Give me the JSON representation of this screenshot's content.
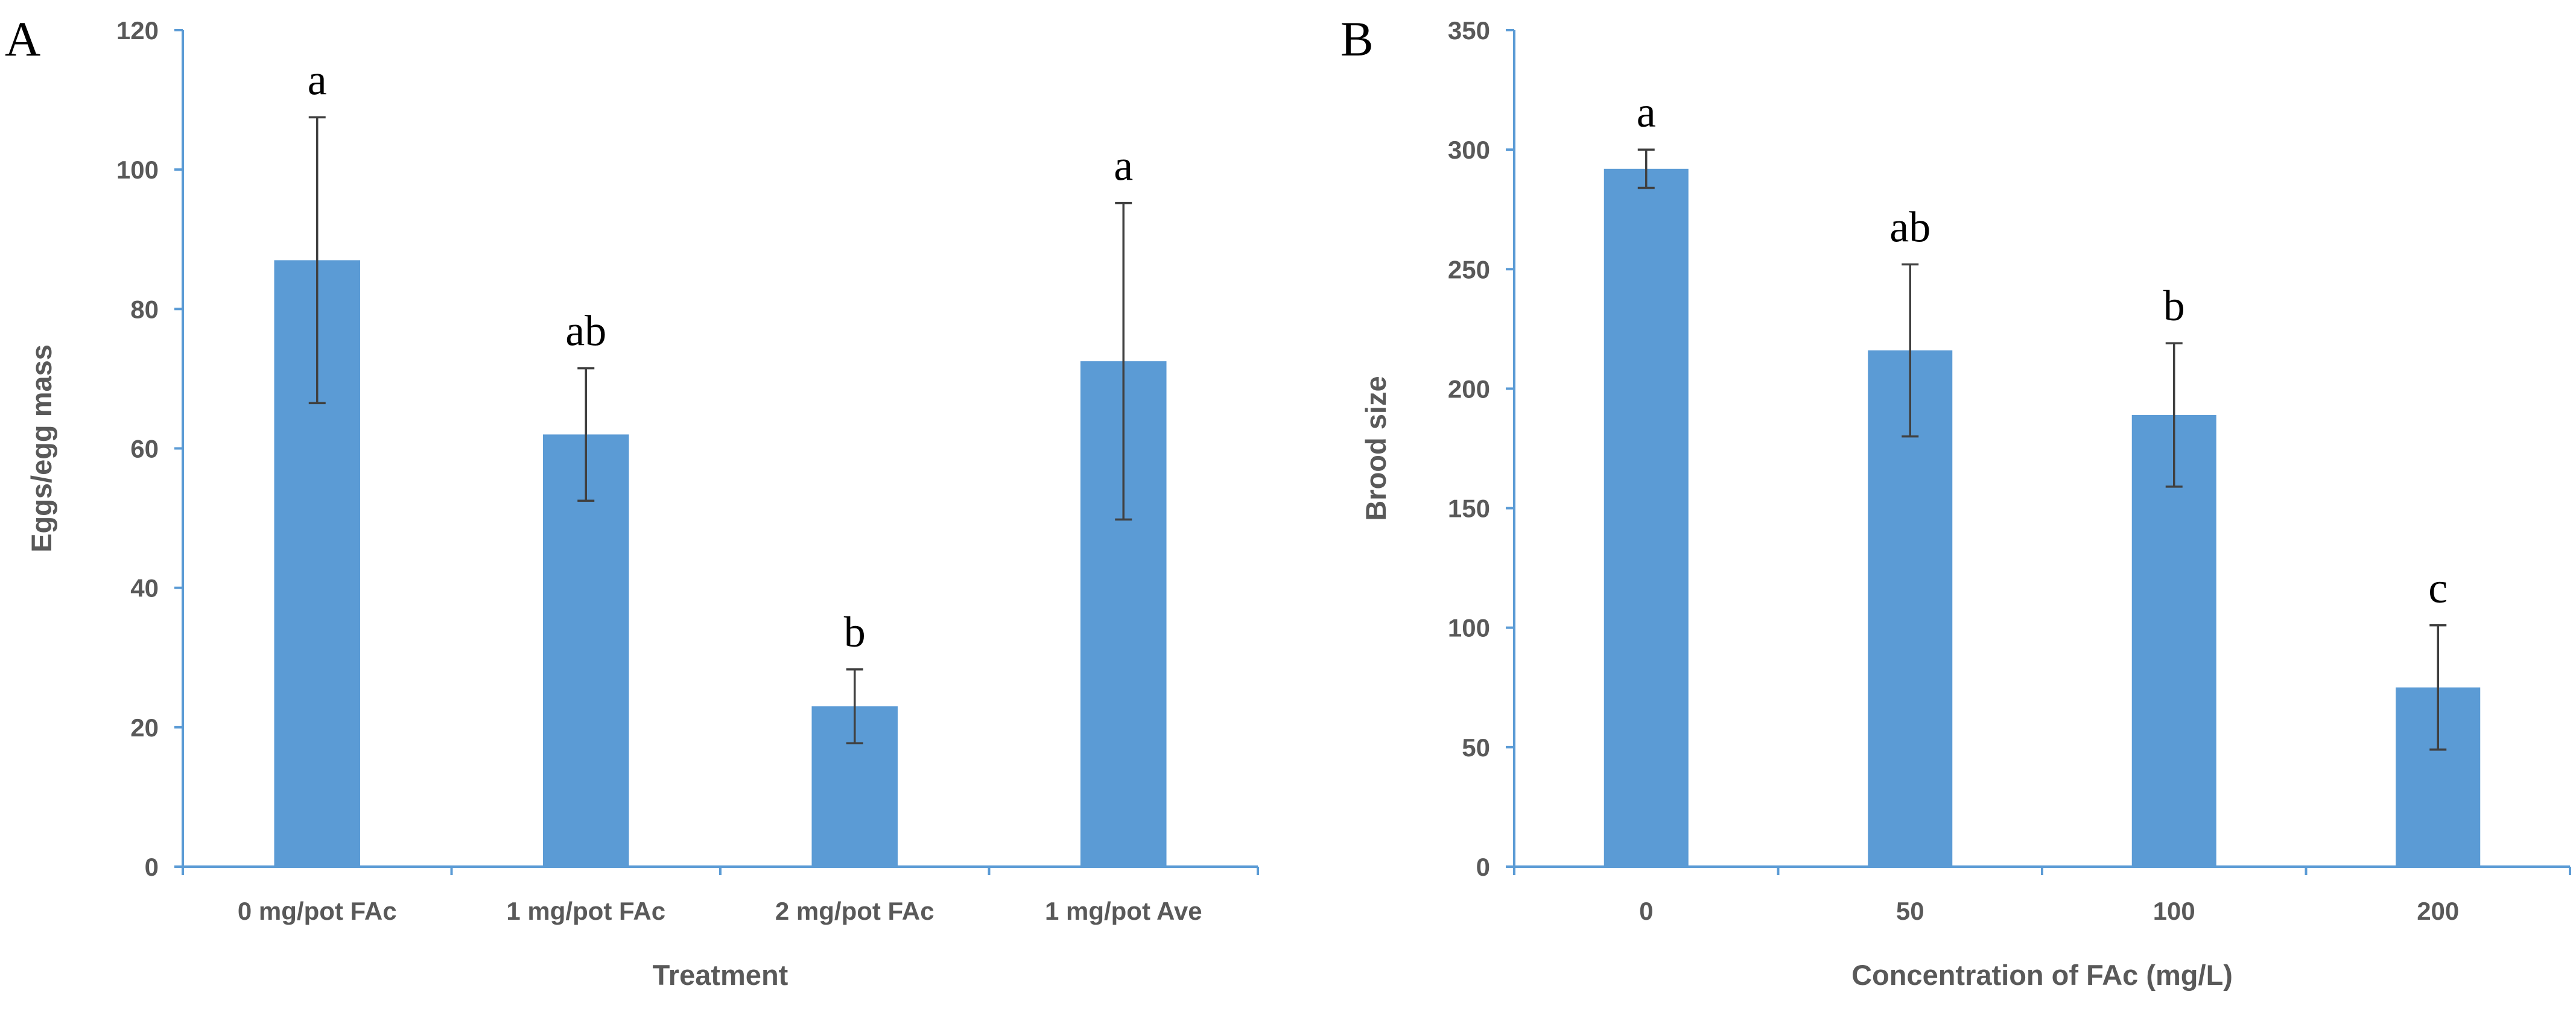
{
  "chart_data": [
    {
      "type": "bar",
      "panel": "A",
      "categories": [
        "0 mg/pot FAc",
        "1 mg/pot FAc",
        "2 mg/pot FAc",
        "1 mg/pot Ave"
      ],
      "values": [
        87,
        62,
        23,
        72.5
      ],
      "error": [
        20.5,
        9.5,
        5.3,
        22.7
      ],
      "significance": [
        "a",
        "ab",
        "b",
        "a"
      ],
      "xlabel": "Treatment",
      "ylabel": "Eggs/egg mass",
      "ylim": [
        0,
        120
      ],
      "yticks": [
        0,
        20,
        40,
        60,
        80,
        100,
        120
      ],
      "grid": false,
      "color": "#5B9BD5"
    },
    {
      "type": "bar",
      "panel": "B",
      "categories": [
        "0",
        "50",
        "100",
        "200"
      ],
      "values": [
        292,
        216,
        189,
        75
      ],
      "error": [
        8,
        36,
        30,
        26
      ],
      "significance": [
        "a",
        "ab",
        "b",
        "c"
      ],
      "xlabel": "Concentration of FAc (mg/L)",
      "ylabel": "Brood size",
      "ylim": [
        0,
        350
      ],
      "yticks": [
        0,
        50,
        100,
        150,
        200,
        250,
        300,
        350
      ],
      "grid": false,
      "color": "#5B9BD5"
    }
  ],
  "colors": {
    "bar": "#5B9BD5",
    "axis": "#5B9BD5",
    "error_bar": "#404040",
    "tick_text": "#595959"
  }
}
